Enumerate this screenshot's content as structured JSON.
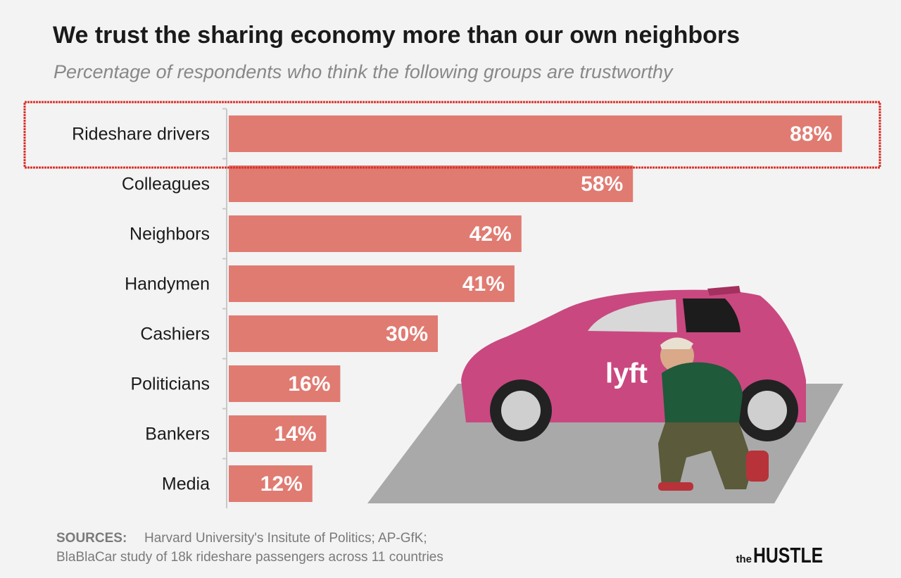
{
  "chart_data": {
    "type": "bar",
    "orientation": "horizontal",
    "title": "We trust the sharing economy more than our own neighbors",
    "subtitle": "Percentage of respondents who think the following groups are trustworthy",
    "categories": [
      "Rideshare drivers",
      "Colleagues",
      "Neighbors",
      "Handymen",
      "Cashiers",
      "Politicians",
      "Bankers",
      "Media"
    ],
    "values": [
      88,
      58,
      42,
      41,
      30,
      16,
      14,
      12
    ],
    "value_labels": [
      "88%",
      "58%",
      "42%",
      "41%",
      "30%",
      "16%",
      "14%",
      "12%"
    ],
    "color": "#e07b72",
    "source_label": "SOURCES:",
    "source_lines": [
      "Harvard University's Insitute of Politics; AP-GfK;",
      "BlaBlaCar study of 18k rideshare passengers across 11 countries"
    ],
    "credit": [
      "the",
      "HUSTLE"
    ],
    "car_logo": "lyft"
  }
}
